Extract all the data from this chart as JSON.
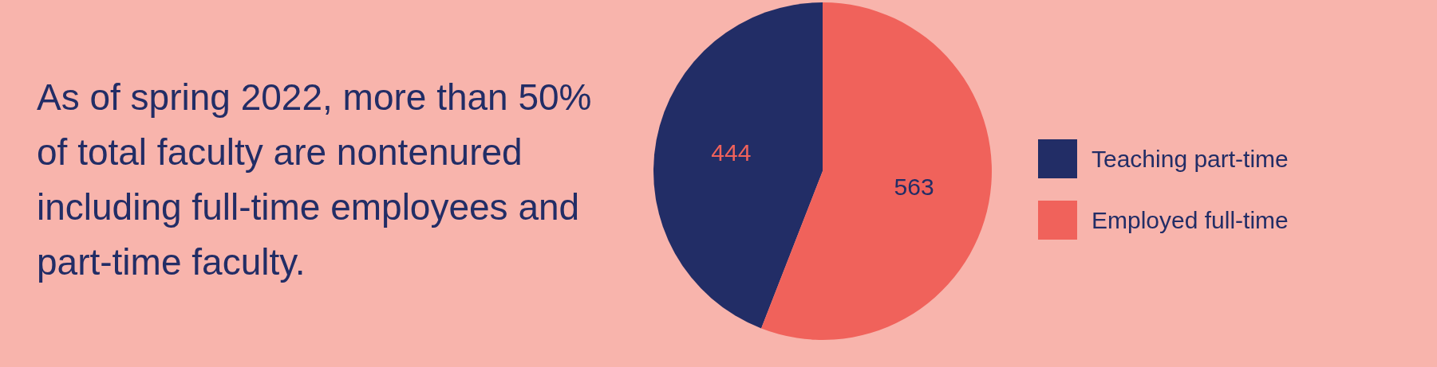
{
  "chart_data": {
    "type": "pie",
    "title": "As of spring 2022, more than 50% of total faculty are nontenured including full-time employees and part-time faculty.",
    "categories": [
      "Teaching part-time",
      "Employed full-time"
    ],
    "values": [
      444,
      563
    ],
    "colors": [
      "#222d66",
      "#f0625b"
    ],
    "data_labels": true,
    "legend": "right"
  }
}
